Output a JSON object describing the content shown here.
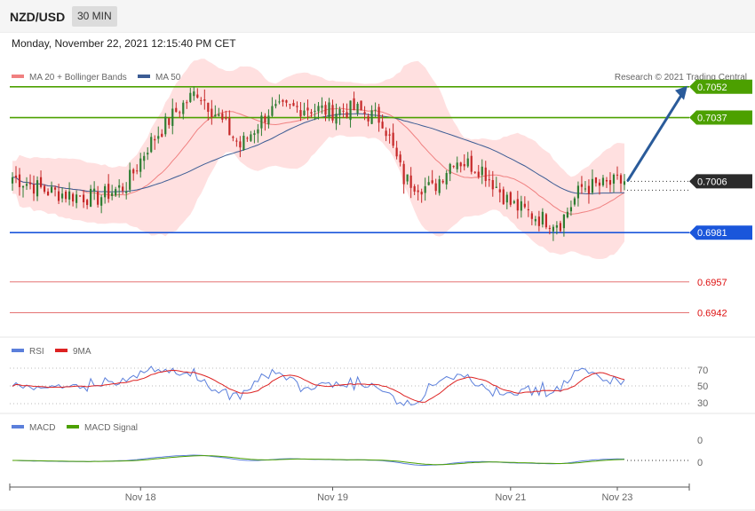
{
  "header": {
    "symbol": "NZD/USD",
    "timeframe": "30 MIN",
    "datetime": "Monday, November 22, 2021 12:15:40 PM CET"
  },
  "copyright": "Research © 2021 Trading Central",
  "colors": {
    "up": "#2e7d32",
    "down": "#c62828",
    "band": "#ffd6d6",
    "ma20": "#f08080",
    "ma50": "#3c5c94",
    "resistance": "#4ca000",
    "support": "#1a56db",
    "supportMinor": "#e57373",
    "arrow": "#2a5b9a",
    "rsi": "#5b7fdb",
    "rsi_ma": "#dd2222",
    "macd": "#5b7fdb",
    "macd_signal": "#4ca000"
  },
  "chart_data": [
    {
      "type": "candlestick",
      "legend": [
        {
          "name": "MA 20 + Bollinger Bands",
          "color": "#f08080"
        },
        {
          "name": "MA 50",
          "color": "#3c5c94"
        }
      ],
      "levels": [
        {
          "value": 0.7052,
          "label": "0.7052",
          "kind": "resistance"
        },
        {
          "value": 0.7037,
          "label": "0.7037",
          "kind": "resistance"
        },
        {
          "value": 0.7006,
          "label": "0.7006",
          "kind": "current"
        },
        {
          "value": 0.6981,
          "label": "0.6981",
          "kind": "support"
        },
        {
          "value": 0.6957,
          "label": "0.6957",
          "kind": "minor"
        },
        {
          "value": 0.6942,
          "label": "0.6942",
          "kind": "minor"
        }
      ],
      "ylim": [
        0.6931,
        0.7064
      ],
      "anchors": [
        {
          "i": 0,
          "p": 0.7008
        },
        {
          "i": 10,
          "p": 0.7001
        },
        {
          "i": 18,
          "p": 0.6999
        },
        {
          "i": 24,
          "p": 0.6998
        },
        {
          "i": 32,
          "p": 0.7004
        },
        {
          "i": 38,
          "p": 0.7023
        },
        {
          "i": 46,
          "p": 0.704
        },
        {
          "i": 52,
          "p": 0.705
        },
        {
          "i": 58,
          "p": 0.7037
        },
        {
          "i": 64,
          "p": 0.7023
        },
        {
          "i": 72,
          "p": 0.704
        },
        {
          "i": 82,
          "p": 0.7042
        },
        {
          "i": 90,
          "p": 0.704
        },
        {
          "i": 96,
          "p": 0.7041
        },
        {
          "i": 104,
          "p": 0.7036
        },
        {
          "i": 110,
          "p": 0.7007
        },
        {
          "i": 118,
          "p": 0.7002
        },
        {
          "i": 124,
          "p": 0.7017
        },
        {
          "i": 132,
          "p": 0.7012
        },
        {
          "i": 140,
          "p": 0.6995
        },
        {
          "i": 148,
          "p": 0.6988
        },
        {
          "i": 154,
          "p": 0.6986
        },
        {
          "i": 160,
          "p": 0.7003
        },
        {
          "i": 166,
          "p": 0.7004
        },
        {
          "i": 172,
          "p": 0.7006
        }
      ],
      "x_ticks": [
        {
          "label": "Nov 18",
          "i": 36
        },
        {
          "label": "Nov 19",
          "i": 90
        },
        {
          "label": "Nov 21",
          "i": 140
        },
        {
          "label": "Nov 23",
          "i": 170
        }
      ]
    },
    {
      "type": "line",
      "legend": [
        {
          "name": "RSI",
          "color": "#5b7fdb"
        },
        {
          "name": "9MA",
          "color": "#dd2222"
        }
      ],
      "y_ticks": [
        "70",
        "50",
        "30"
      ],
      "ylim": [
        20,
        80
      ]
    },
    {
      "type": "line",
      "legend": [
        {
          "name": "MACD",
          "color": "#5b7fdb"
        },
        {
          "name": "MACD Signal",
          "color": "#4ca000"
        }
      ],
      "y_ticks": [
        "0",
        "0"
      ]
    }
  ]
}
